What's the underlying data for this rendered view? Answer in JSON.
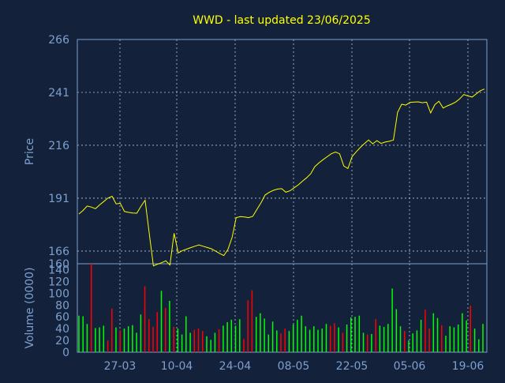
{
  "chart_data": [
    {
      "type": "line",
      "title": "WWD - last updated 23/06/2025",
      "ylabel": "Price",
      "xlabel": "",
      "ylim": [
        160,
        266
      ],
      "yticks": [
        166,
        191,
        216,
        241,
        266
      ],
      "ytick_extra": [
        160
      ],
      "x_tick_labels": [
        "27-03",
        "10-04",
        "24-04",
        "08-05",
        "22-05",
        "05-06",
        "19-06"
      ],
      "grid": true,
      "line_color": "#ffff00",
      "prices": [
        183.5,
        185.2,
        187.3,
        186.8,
        186.0,
        187.8,
        189.4,
        191.0,
        191.9,
        188.3,
        188.6,
        184.7,
        184.3,
        184.0,
        183.9,
        187.2,
        190.0,
        174.2,
        159.0,
        159.8,
        160.5,
        161.4,
        159.4,
        174.4,
        165.1,
        166.2,
        166.9,
        167.6,
        168.3,
        168.9,
        168.3,
        167.7,
        167.1,
        166.0,
        164.9,
        163.9,
        166.7,
        172.4,
        181.8,
        182.3,
        182.1,
        181.8,
        182.4,
        185.6,
        188.8,
        192.5,
        193.8,
        194.7,
        195.3,
        195.5,
        193.8,
        194.5,
        195.9,
        197.3,
        199.0,
        200.6,
        202.5,
        205.9,
        207.7,
        209.2,
        210.6,
        212.0,
        212.8,
        212.0,
        206.2,
        205.0,
        210.6,
        212.9,
        215.0,
        216.8,
        218.5,
        216.7,
        218.2,
        216.9,
        217.5,
        217.9,
        218.5,
        231.6,
        235.4,
        235.0,
        236.3,
        236.4,
        236.5,
        236.1,
        236.4,
        231.3,
        235.2,
        236.8,
        233.6,
        234.6,
        235.4,
        236.4,
        237.9,
        240.0,
        239.3,
        238.8,
        240.3,
        241.8,
        242.6
      ]
    },
    {
      "type": "bar",
      "ylabel": "Volume (0000)",
      "ylim": [
        0,
        150
      ],
      "yticks": [
        0,
        20,
        40,
        60,
        80,
        100,
        120,
        140
      ],
      "colors": {
        "up": "#00ff00",
        "down": "#ff0000"
      },
      "volumes": [
        62,
        61,
        48,
        150,
        41,
        42,
        45,
        20,
        74,
        42,
        37,
        40,
        44,
        46,
        33,
        64,
        112,
        56,
        43,
        68,
        104,
        75,
        87,
        43,
        40,
        30,
        61,
        33,
        38,
        40,
        36,
        27,
        21,
        33,
        39,
        45,
        51,
        55,
        45,
        56,
        22,
        88,
        105,
        60,
        66,
        57,
        30,
        52,
        37,
        32,
        40,
        36,
        47,
        55,
        62,
        44,
        38,
        44,
        38,
        40,
        48,
        45,
        49,
        42,
        33,
        47,
        59,
        60,
        62,
        33,
        30,
        31,
        56,
        45,
        43,
        48,
        108,
        73,
        44,
        36,
        20,
        32,
        37,
        55,
        72,
        40,
        66,
        58,
        46,
        28,
        44,
        42,
        47,
        66,
        54,
        79,
        40,
        22,
        48
      ],
      "down": [
        false,
        false,
        false,
        true,
        false,
        false,
        false,
        true,
        true,
        false,
        true,
        false,
        false,
        false,
        false,
        false,
        true,
        true,
        true,
        true,
        false,
        true,
        false,
        true,
        false,
        false,
        false,
        false,
        true,
        true,
        true,
        false,
        false,
        false,
        true,
        false,
        false,
        false,
        false,
        false,
        true,
        true,
        true,
        false,
        false,
        false,
        false,
        false,
        false,
        true,
        true,
        false,
        false,
        false,
        false,
        false,
        false,
        false,
        false,
        false,
        false,
        true,
        true,
        false,
        true,
        false,
        false,
        false,
        false,
        false,
        true,
        false,
        true,
        false,
        false,
        false,
        false,
        false,
        false,
        true,
        false,
        false,
        false,
        false,
        true,
        true,
        false,
        false,
        true,
        false,
        false,
        false,
        false,
        false,
        false,
        true,
        false,
        false,
        false
      ]
    }
  ]
}
